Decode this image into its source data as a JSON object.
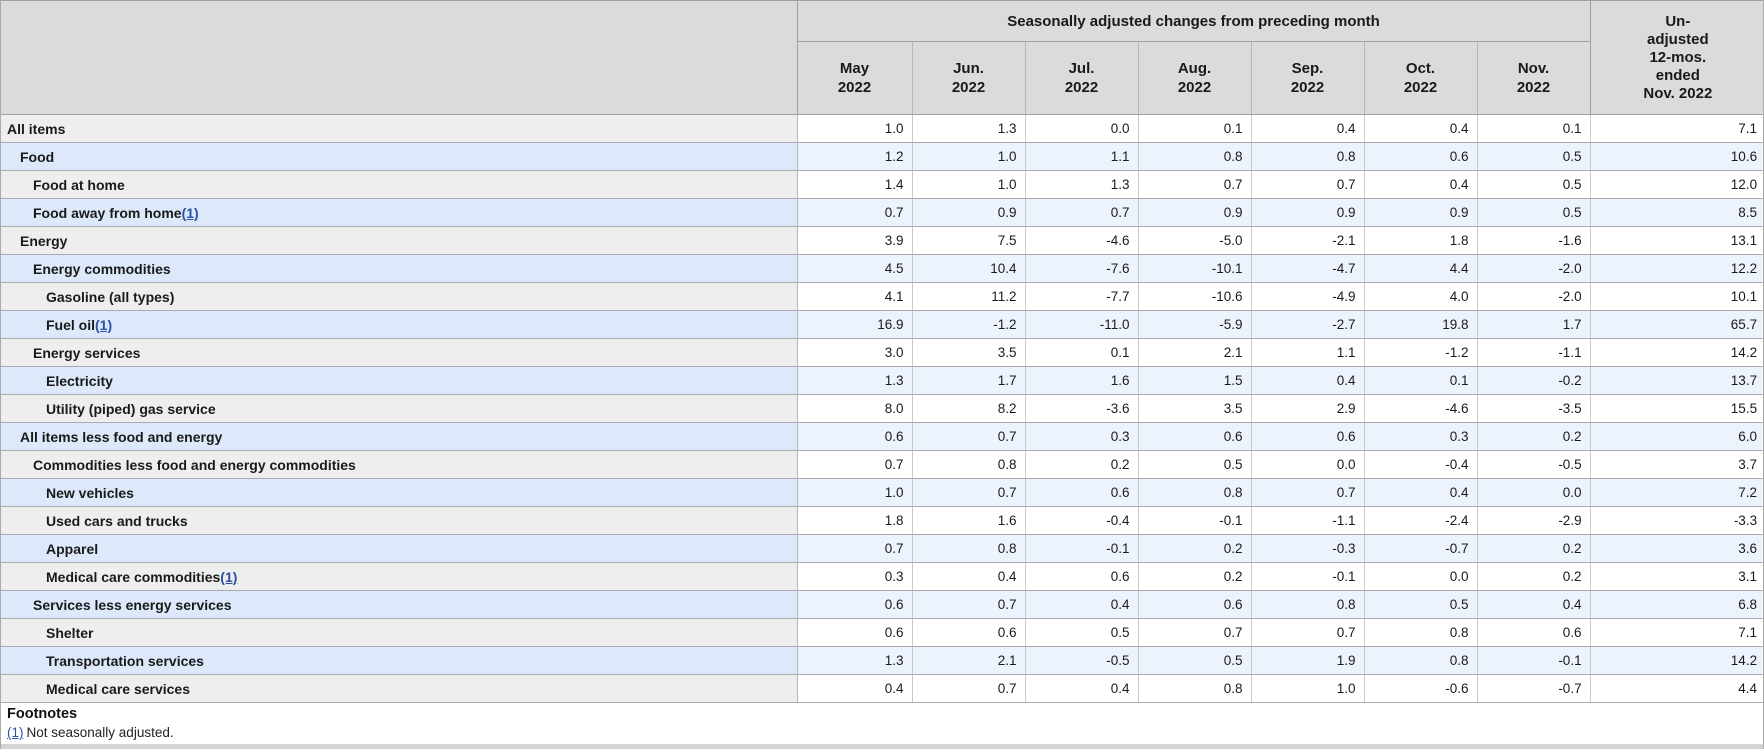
{
  "table": {
    "group_header": "Seasonally adjusted changes from preceding month",
    "unadjusted_header": "Un-\nadjusted\n12-mos.\nended\nNov. 2022",
    "months": [
      {
        "label": "May",
        "year": "2022"
      },
      {
        "label": "Jun.",
        "year": "2022"
      },
      {
        "label": "Jul.",
        "year": "2022"
      },
      {
        "label": "Aug.",
        "year": "2022"
      },
      {
        "label": "Sep.",
        "year": "2022"
      },
      {
        "label": "Oct.",
        "year": "2022"
      },
      {
        "label": "Nov.",
        "year": "2022"
      }
    ],
    "rows": [
      {
        "label": "All items",
        "indent": 0,
        "footnote_marker": "",
        "values": [
          "1.0",
          "1.3",
          "0.0",
          "0.1",
          "0.4",
          "0.4",
          "0.1"
        ],
        "unadjusted_12mo": "7.1"
      },
      {
        "label": "Food",
        "indent": 1,
        "footnote_marker": "",
        "values": [
          "1.2",
          "1.0",
          "1.1",
          "0.8",
          "0.8",
          "0.6",
          "0.5"
        ],
        "unadjusted_12mo": "10.6"
      },
      {
        "label": "Food at home",
        "indent": 2,
        "footnote_marker": "",
        "values": [
          "1.4",
          "1.0",
          "1.3",
          "0.7",
          "0.7",
          "0.4",
          "0.5"
        ],
        "unadjusted_12mo": "12.0"
      },
      {
        "label": "Food away from home",
        "indent": 2,
        "footnote_marker": "(1)",
        "values": [
          "0.7",
          "0.9",
          "0.7",
          "0.9",
          "0.9",
          "0.9",
          "0.5"
        ],
        "unadjusted_12mo": "8.5"
      },
      {
        "label": "Energy",
        "indent": 1,
        "footnote_marker": "",
        "values": [
          "3.9",
          "7.5",
          "-4.6",
          "-5.0",
          "-2.1",
          "1.8",
          "-1.6"
        ],
        "unadjusted_12mo": "13.1"
      },
      {
        "label": "Energy commodities",
        "indent": 2,
        "footnote_marker": "",
        "values": [
          "4.5",
          "10.4",
          "-7.6",
          "-10.1",
          "-4.7",
          "4.4",
          "-2.0"
        ],
        "unadjusted_12mo": "12.2"
      },
      {
        "label": "Gasoline (all types)",
        "indent": 3,
        "footnote_marker": "",
        "values": [
          "4.1",
          "11.2",
          "-7.7",
          "-10.6",
          "-4.9",
          "4.0",
          "-2.0"
        ],
        "unadjusted_12mo": "10.1"
      },
      {
        "label": "Fuel oil",
        "indent": 3,
        "footnote_marker": "(1)",
        "values": [
          "16.9",
          "-1.2",
          "-11.0",
          "-5.9",
          "-2.7",
          "19.8",
          "1.7"
        ],
        "unadjusted_12mo": "65.7"
      },
      {
        "label": "Energy services",
        "indent": 2,
        "footnote_marker": "",
        "values": [
          "3.0",
          "3.5",
          "0.1",
          "2.1",
          "1.1",
          "-1.2",
          "-1.1"
        ],
        "unadjusted_12mo": "14.2"
      },
      {
        "label": "Electricity",
        "indent": 3,
        "footnote_marker": "",
        "values": [
          "1.3",
          "1.7",
          "1.6",
          "1.5",
          "0.4",
          "0.1",
          "-0.2"
        ],
        "unadjusted_12mo": "13.7"
      },
      {
        "label": "Utility (piped) gas service",
        "indent": 3,
        "footnote_marker": "",
        "values": [
          "8.0",
          "8.2",
          "-3.6",
          "3.5",
          "2.9",
          "-4.6",
          "-3.5"
        ],
        "unadjusted_12mo": "15.5"
      },
      {
        "label": "All items less food and energy",
        "indent": 1,
        "footnote_marker": "",
        "values": [
          "0.6",
          "0.7",
          "0.3",
          "0.6",
          "0.6",
          "0.3",
          "0.2"
        ],
        "unadjusted_12mo": "6.0"
      },
      {
        "label": "Commodities less food and energy commodities",
        "indent": 2,
        "footnote_marker": "",
        "values": [
          "0.7",
          "0.8",
          "0.2",
          "0.5",
          "0.0",
          "-0.4",
          "-0.5"
        ],
        "unadjusted_12mo": "3.7"
      },
      {
        "label": "New vehicles",
        "indent": 3,
        "footnote_marker": "",
        "values": [
          "1.0",
          "0.7",
          "0.6",
          "0.8",
          "0.7",
          "0.4",
          "0.0"
        ],
        "unadjusted_12mo": "7.2"
      },
      {
        "label": "Used cars and trucks",
        "indent": 3,
        "footnote_marker": "",
        "values": [
          "1.8",
          "1.6",
          "-0.4",
          "-0.1",
          "-1.1",
          "-2.4",
          "-2.9"
        ],
        "unadjusted_12mo": "-3.3"
      },
      {
        "label": "Apparel",
        "indent": 3,
        "footnote_marker": "",
        "values": [
          "0.7",
          "0.8",
          "-0.1",
          "0.2",
          "-0.3",
          "-0.7",
          "0.2"
        ],
        "unadjusted_12mo": "3.6"
      },
      {
        "label": "Medical care commodities",
        "indent": 3,
        "footnote_marker": "(1)",
        "values": [
          "0.3",
          "0.4",
          "0.6",
          "0.2",
          "-0.1",
          "0.0",
          "0.2"
        ],
        "unadjusted_12mo": "3.1"
      },
      {
        "label": "Services less energy services",
        "indent": 2,
        "footnote_marker": "",
        "values": [
          "0.6",
          "0.7",
          "0.4",
          "0.6",
          "0.8",
          "0.5",
          "0.4"
        ],
        "unadjusted_12mo": "6.8"
      },
      {
        "label": "Shelter",
        "indent": 3,
        "footnote_marker": "",
        "values": [
          "0.6",
          "0.6",
          "0.5",
          "0.7",
          "0.7",
          "0.8",
          "0.6"
        ],
        "unadjusted_12mo": "7.1"
      },
      {
        "label": "Transportation services",
        "indent": 3,
        "footnote_marker": "",
        "values": [
          "1.3",
          "2.1",
          "-0.5",
          "0.5",
          "1.9",
          "0.8",
          "-0.1"
        ],
        "unadjusted_12mo": "14.2"
      },
      {
        "label": "Medical care services",
        "indent": 3,
        "footnote_marker": "",
        "values": [
          "0.4",
          "0.7",
          "0.4",
          "0.8",
          "1.0",
          "-0.6",
          "-0.7"
        ],
        "unadjusted_12mo": "4.4"
      }
    ]
  },
  "footnotes": {
    "title": "Footnotes",
    "marker": "(1)",
    "text": "Not seasonally adjusted."
  },
  "colors": {
    "header-bg": "#dbdbdb",
    "row-gray-label": "#eeeeee",
    "row-blue-label": "#dde8fa",
    "row-gray-data": "#ffffff",
    "row-blue-data": "#ecf3fd",
    "border-strong": "#9f9fa6",
    "border-row": "#aaaab1",
    "border-col": "#c9c9c9",
    "link": "#2b51a5",
    "strip": "#d4d4d4"
  }
}
